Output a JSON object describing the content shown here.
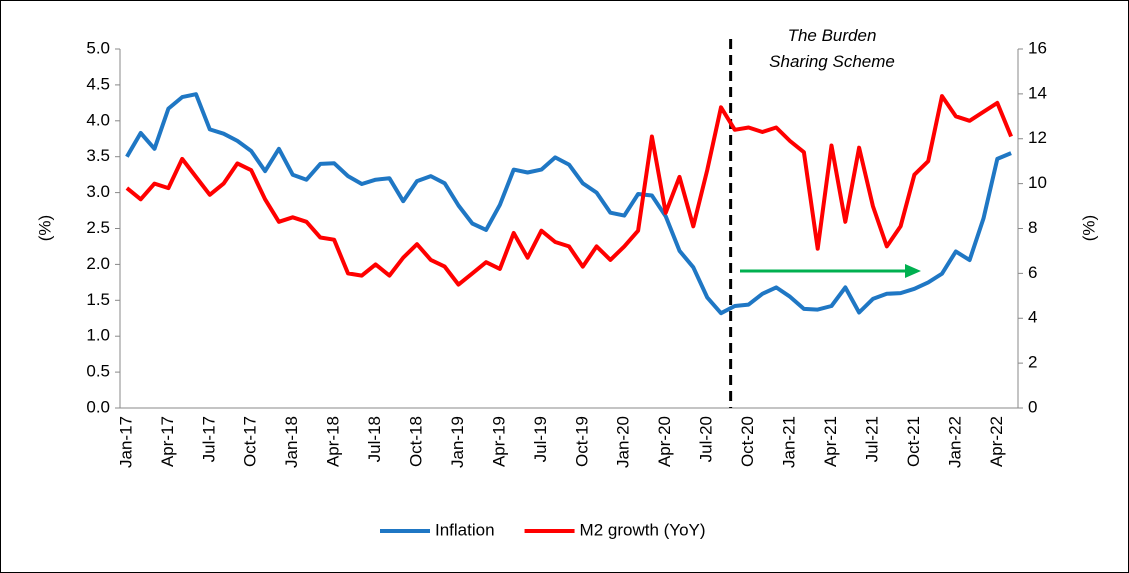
{
  "chart_data": {
    "type": "line",
    "annotation": "The Burden Sharing Scheme",
    "ylabel": "(%)",
    "y2label": "(%)",
    "categories": [
      "Jan-17",
      null,
      null,
      "Apr-17",
      null,
      null,
      "Jul-17",
      null,
      null,
      "Oct-17",
      null,
      null,
      "Jan-18",
      null,
      null,
      "Apr-18",
      null,
      null,
      "Jul-18",
      null,
      null,
      "Oct-18",
      null,
      null,
      "Jan-19",
      null,
      null,
      "Apr-19",
      null,
      null,
      "Jul-19",
      null,
      null,
      "Oct-19",
      null,
      null,
      "Jan-20",
      null,
      null,
      "Apr-20",
      null,
      null,
      "Jul-20",
      null,
      null,
      "Oct-20",
      null,
      null,
      "Jan-21",
      null,
      null,
      "Apr-21",
      null,
      null,
      "Jul-21",
      null,
      null,
      "Oct-21",
      null,
      null,
      "Jan-22",
      null,
      null,
      "Apr-22",
      null
    ],
    "series": [
      {
        "name": "Inflation",
        "color": "#1f77c4",
        "values": [
          3.5,
          3.83,
          3.61,
          4.17,
          4.33,
          4.37,
          3.88,
          3.82,
          3.72,
          3.58,
          3.3,
          3.61,
          3.25,
          3.18,
          3.4,
          3.41,
          3.23,
          3.12,
          3.18,
          3.2,
          2.88,
          3.16,
          3.23,
          3.13,
          2.82,
          2.57,
          2.48,
          2.83,
          3.32,
          3.28,
          3.32,
          3.49,
          3.39,
          3.13,
          3.0,
          2.72,
          2.68,
          2.98,
          2.96,
          2.67,
          2.19,
          1.96,
          1.54,
          1.32,
          1.42,
          1.44,
          1.59,
          1.68,
          1.55,
          1.38,
          1.37,
          1.42,
          1.68,
          1.33,
          1.52,
          1.59,
          1.6,
          1.66,
          1.75,
          1.87,
          2.18,
          2.06,
          2.64,
          3.47,
          3.55
        ]
      },
      {
        "name": "M2 growth (YoY)",
        "color": "#ff0000",
        "axis": "y2",
        "values": [
          9.8,
          9.3,
          10.0,
          9.8,
          11.1,
          10.3,
          9.5,
          10.0,
          10.9,
          10.6,
          9.3,
          8.3,
          8.5,
          8.3,
          7.6,
          7.5,
          6.0,
          5.9,
          6.4,
          5.9,
          6.7,
          7.3,
          6.6,
          6.3,
          5.5,
          6.0,
          6.5,
          6.2,
          7.8,
          6.7,
          7.9,
          7.4,
          7.2,
          6.3,
          7.2,
          6.6,
          7.2,
          7.9,
          12.1,
          8.7,
          10.3,
          8.1,
          10.6,
          13.4,
          12.4,
          12.5,
          12.3,
          12.5,
          11.9,
          11.4,
          7.1,
          11.7,
          8.3,
          11.6,
          9.0,
          7.2,
          8.1,
          10.4,
          11.0,
          13.9,
          13.0,
          12.8,
          13.2,
          13.6,
          12.1
        ]
      }
    ],
    "ylim": [
      0,
      5
    ],
    "yticks": [
      {
        "value": 0,
        "label": "0.0"
      },
      {
        "value": 0.5,
        "label": "0.5"
      },
      {
        "value": 1,
        "label": "1.0"
      },
      {
        "value": 1.5,
        "label": "1.5"
      },
      {
        "value": 2,
        "label": "2.0"
      },
      {
        "value": 2.5,
        "label": "2.5"
      },
      {
        "value": 3,
        "label": "3.0"
      },
      {
        "value": 3.5,
        "label": "3.5"
      },
      {
        "value": 4,
        "label": "4.0"
      },
      {
        "value": 4.5,
        "label": "4.5"
      },
      {
        "value": 5,
        "label": "5.0"
      }
    ],
    "y2lim": [
      0,
      16
    ],
    "y2ticks": [
      0,
      2,
      4,
      6,
      8,
      10,
      12,
      14,
      16
    ],
    "legend": "bottom"
  }
}
